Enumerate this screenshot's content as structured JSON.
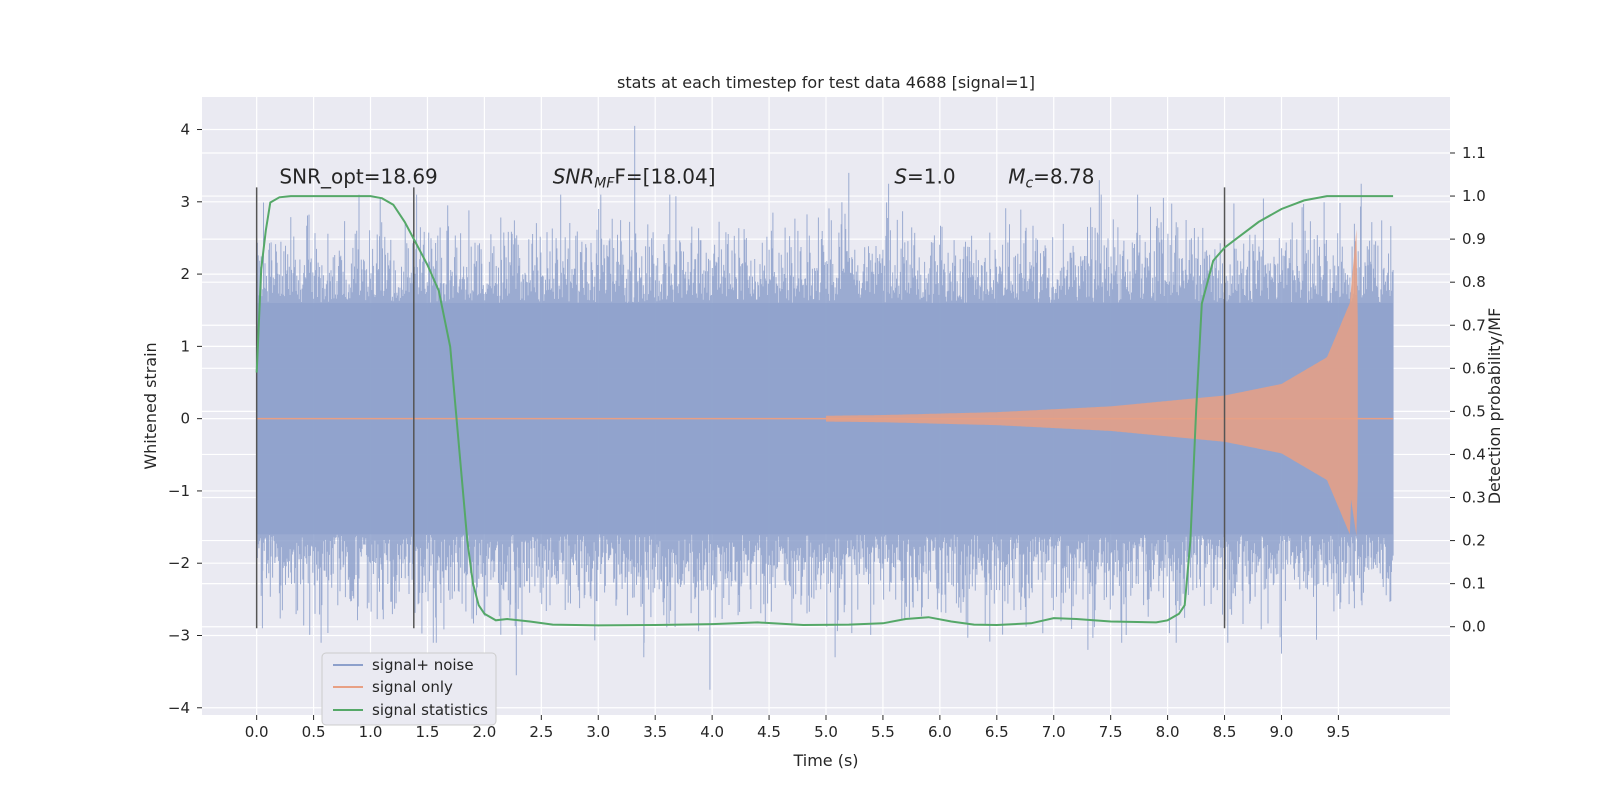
{
  "chart_data": {
    "type": "line",
    "title": "stats at each timestep for test data 4688 [signal=1]",
    "xlabel": "Time (s)",
    "ylabel": "Whitened strain",
    "y2label": "Detection probability/MF",
    "xlim": [
      -0.48,
      10.48
    ],
    "ylim": [
      -4.1,
      4.45
    ],
    "y2lim": [
      -0.205,
      1.23
    ],
    "x_ticks": [
      "0.0",
      "0.5",
      "1.0",
      "1.5",
      "2.0",
      "2.5",
      "3.0",
      "3.5",
      "4.0",
      "4.5",
      "5.0",
      "5.5",
      "6.0",
      "6.5",
      "7.0",
      "7.5",
      "8.0",
      "8.5",
      "9.0",
      "9.5"
    ],
    "y_ticks": [
      "−4",
      "−3",
      "−2",
      "−1",
      "0",
      "1",
      "2",
      "3",
      "4"
    ],
    "y2_ticks": [
      "0.0",
      "0.1",
      "0.2",
      "0.3",
      "0.4",
      "0.5",
      "0.6",
      "0.7",
      "0.8",
      "0.9",
      "1.0",
      "1.1"
    ],
    "grid": true,
    "background": "#eaeaf2",
    "annotations": [
      {
        "text": "SNR_opt=18.69",
        "x": 0.2,
        "y": 3.2
      },
      {
        "base": "SNR",
        "sub": "MF",
        "rest": "F=[18.04]",
        "x": 2.6,
        "y": 3.2
      },
      {
        "base": "S",
        "rest": "=1.0",
        "x": 5.6,
        "y": 3.2
      },
      {
        "base": "M",
        "sub": "c",
        "rest": "=8.78",
        "x": 6.6,
        "y": 3.2
      }
    ],
    "vertical_markers": [
      {
        "x": 0.0,
        "y_from": -2.9,
        "y_to": 3.2
      },
      {
        "x": 1.38,
        "y_from": -2.9,
        "y_to": 3.2
      },
      {
        "x": 8.5,
        "y_from": -2.9,
        "y_to": 3.2
      }
    ],
    "legend": {
      "placement": "lower-left",
      "entries": [
        "signal+ noise",
        "signal only",
        "signal statistics"
      ]
    },
    "series": [
      {
        "name": "signal+ noise",
        "color": "#8da0cb",
        "x_range": [
          0.0,
          9.98
        ],
        "typical_band": [
          -1.6,
          1.6
        ],
        "peaks": [
          {
            "x": 3.32,
            "y": 4.05
          },
          {
            "x": 3.4,
            "y": -3.3
          },
          {
            "x": 2.28,
            "y": -3.55
          },
          {
            "x": 3.98,
            "y": -3.75
          },
          {
            "x": 5.2,
            "y": 3.4
          },
          {
            "x": 5.08,
            "y": -3.3
          },
          {
            "x": 7.4,
            "y": 3.3
          },
          {
            "x": 7.3,
            "y": -3.2
          },
          {
            "x": 9.0,
            "y": -3.25
          },
          {
            "x": 9.7,
            "y": 3.25
          },
          {
            "x": 5.55,
            "y": 3.25
          },
          {
            "x": 0.05,
            "y": -2.9
          }
        ]
      },
      {
        "name": "signal only",
        "color": "#e8a084",
        "chirp_amplitude": [
          [
            0.0,
            0.01
          ],
          [
            4.0,
            0.02
          ],
          [
            5.5,
            0.05
          ],
          [
            6.5,
            0.09
          ],
          [
            7.5,
            0.17
          ],
          [
            8.5,
            0.32
          ],
          [
            9.0,
            0.48
          ],
          [
            9.4,
            0.85
          ],
          [
            9.6,
            1.6
          ],
          [
            9.66,
            2.65
          ],
          [
            9.68,
            0.03
          ],
          [
            9.98,
            0.01
          ]
        ]
      },
      {
        "name": "signal statistics",
        "color": "#55a868",
        "axis": "right",
        "x": [
          0.0,
          0.04,
          0.08,
          0.12,
          0.2,
          0.3,
          0.5,
          0.8,
          1.0,
          1.1,
          1.2,
          1.3,
          1.4,
          1.5,
          1.6,
          1.7,
          1.75,
          1.8,
          1.85,
          1.9,
          1.95,
          2.0,
          2.1,
          2.2,
          2.4,
          2.6,
          3.0,
          3.5,
          4.0,
          4.4,
          4.8,
          5.2,
          5.5,
          5.7,
          5.9,
          6.1,
          6.3,
          6.5,
          6.8,
          7.0,
          7.2,
          7.5,
          7.9,
          8.0,
          8.1,
          8.15,
          8.2,
          8.25,
          8.3,
          8.4,
          8.5,
          8.6,
          8.8,
          9.0,
          9.2,
          9.4,
          9.6,
          9.98
        ],
        "y": [
          0.59,
          0.83,
          0.92,
          0.985,
          0.997,
          1.0,
          1.0,
          1.0,
          1.0,
          0.995,
          0.98,
          0.94,
          0.89,
          0.84,
          0.78,
          0.65,
          0.5,
          0.35,
          0.2,
          0.1,
          0.05,
          0.03,
          0.015,
          0.018,
          0.012,
          0.005,
          0.003,
          0.004,
          0.006,
          0.01,
          0.004,
          0.005,
          0.008,
          0.018,
          0.022,
          0.012,
          0.005,
          0.004,
          0.008,
          0.02,
          0.018,
          0.012,
          0.01,
          0.015,
          0.03,
          0.05,
          0.2,
          0.5,
          0.75,
          0.85,
          0.88,
          0.9,
          0.94,
          0.97,
          0.99,
          1.0,
          1.0,
          1.0
        ]
      }
    ]
  }
}
